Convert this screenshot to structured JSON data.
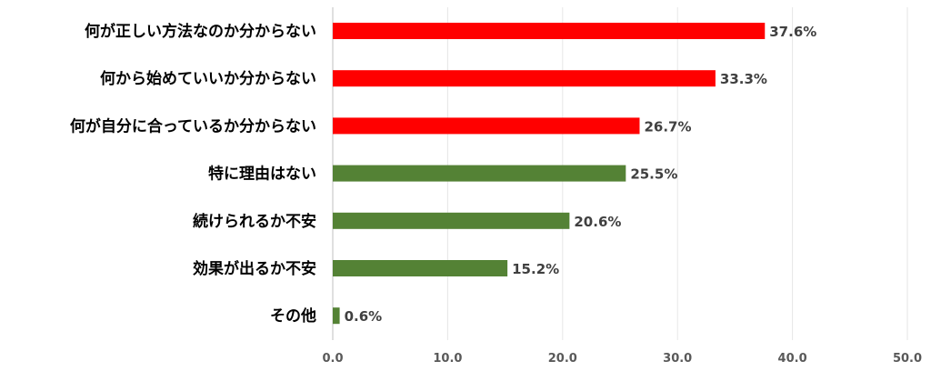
{
  "chart_data": {
    "type": "bar",
    "orientation": "horizontal",
    "categories": [
      "何が正しい方法なのか分からない",
      "何から始めていいか分からない",
      "何が自分に合っているか分からない",
      "特に理由はない",
      "続けられるか不安",
      "効果が出るか不安",
      "その他"
    ],
    "values": [
      37.6,
      33.3,
      26.7,
      25.5,
      20.6,
      15.2,
      0.6
    ],
    "value_labels": [
      "37.6%",
      "33.3%",
      "26.7%",
      "25.5%",
      "20.6%",
      "15.2%",
      "0.6%"
    ],
    "bar_colors": [
      "#ff0000",
      "#ff0000",
      "#ff0000",
      "#548235",
      "#548235",
      "#548235",
      "#548235"
    ],
    "xlim": [
      0,
      50
    ],
    "x_ticks": [
      0,
      10,
      20,
      30,
      40,
      50
    ],
    "x_tick_labels": [
      "0.0",
      "10.0",
      "20.0",
      "30.0",
      "40.0",
      "50.0"
    ],
    "grid": true,
    "title": "",
    "xlabel": "",
    "ylabel": ""
  }
}
